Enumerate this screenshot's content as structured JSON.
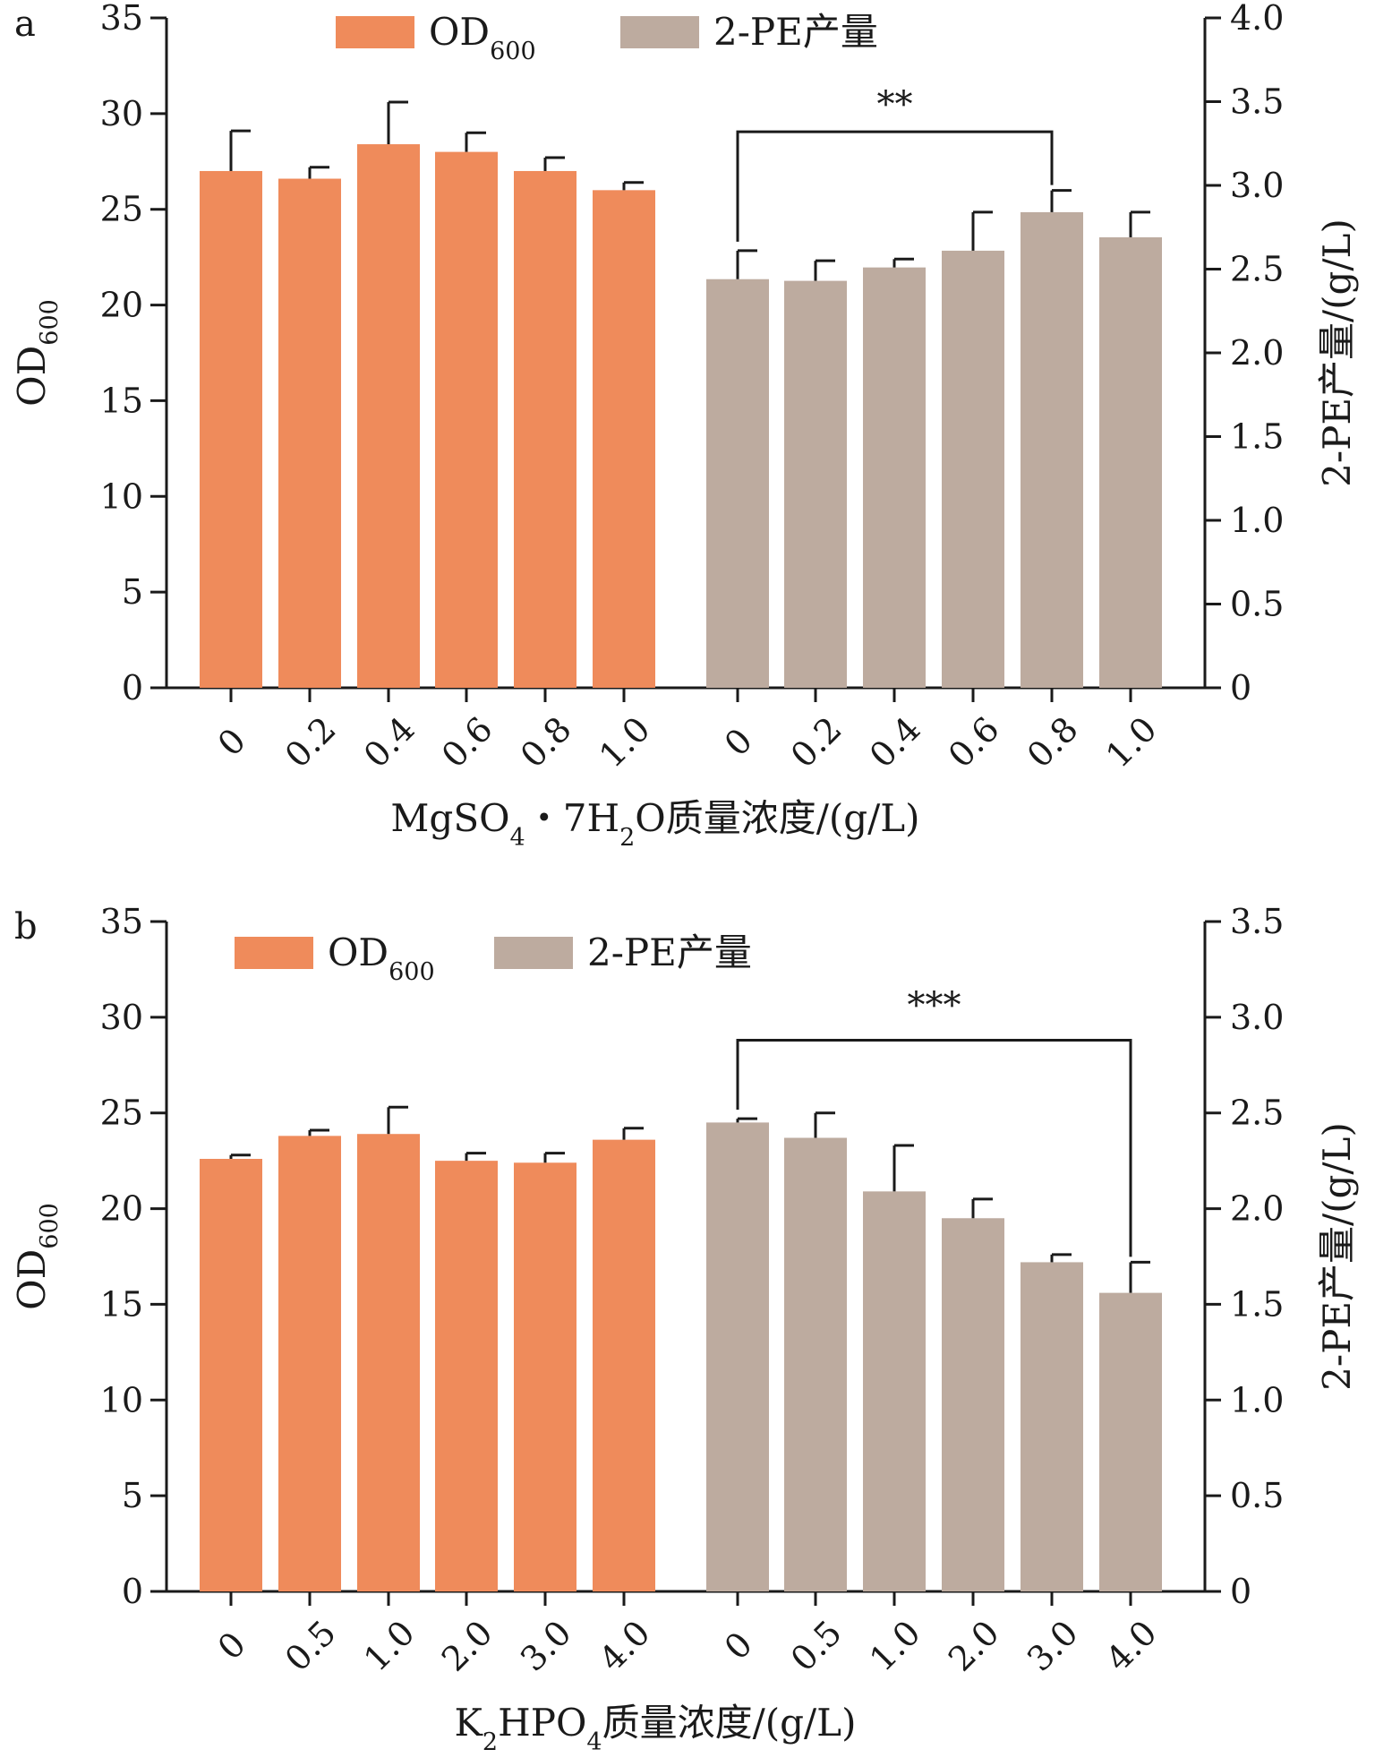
{
  "colors": {
    "od600": "#ef8b5b",
    "pe": "#bdab9f",
    "axis": "#1a1a1a"
  },
  "chart_data": [
    {
      "panel": "a",
      "type": "bar",
      "legend": [
        {
          "key": "od600",
          "label_main": "OD",
          "label_sub": "600"
        },
        {
          "key": "pe",
          "label_main": "2-PE产量",
          "label_sub": ""
        }
      ],
      "left_axis": {
        "label_main": "OD",
        "label_sub": "600",
        "ylim": [
          0,
          35
        ],
        "ticks": [
          "0",
          "5",
          "10",
          "15",
          "20",
          "25",
          "30",
          "35"
        ]
      },
      "right_axis": {
        "label": "2-PE产量/(g/L)",
        "ylim": [
          0,
          4.0
        ],
        "ticks": [
          "0",
          "0.5",
          "1.0",
          "1.5",
          "2.0",
          "2.5",
          "3.0",
          "3.5",
          "4.0"
        ]
      },
      "xlabel": {
        "parts": [
          [
            "MgSO",
            ""
          ],
          [
            "4",
            "sub"
          ],
          [
            "・7H",
            ""
          ],
          [
            "2",
            "sub"
          ],
          [
            "O质量浓度/(g/L)",
            ""
          ]
        ]
      },
      "series": [
        {
          "key": "od600",
          "name": "OD600",
          "axis": "left",
          "categories": [
            "0",
            "0.2",
            "0.4",
            "0.6",
            "0.8",
            "1.0"
          ],
          "values": [
            27.0,
            26.6,
            28.4,
            28.0,
            27.0,
            26.0
          ],
          "errors": [
            2.1,
            0.6,
            2.2,
            1.0,
            0.7,
            0.4
          ]
        },
        {
          "key": "pe",
          "name": "2-PE产量",
          "axis": "right",
          "categories": [
            "0",
            "0.2",
            "0.4",
            "0.6",
            "0.8",
            "1.0"
          ],
          "values": [
            2.44,
            2.43,
            2.51,
            2.61,
            2.84,
            2.69
          ],
          "errors": [
            0.17,
            0.12,
            0.05,
            0.23,
            0.13,
            0.15
          ]
        }
      ],
      "significance": {
        "label": "**",
        "from": [
          "pe",
          0
        ],
        "to": [
          "pe",
          4
        ],
        "level": 3.32
      }
    },
    {
      "panel": "b",
      "type": "bar",
      "legend": [
        {
          "key": "od600",
          "label_main": "OD",
          "label_sub": "600"
        },
        {
          "key": "pe",
          "label_main": "2-PE产量",
          "label_sub": ""
        }
      ],
      "left_axis": {
        "label_main": "OD",
        "label_sub": "600",
        "ylim": [
          0,
          35
        ],
        "ticks": [
          "0",
          "5",
          "10",
          "15",
          "20",
          "25",
          "30",
          "35"
        ]
      },
      "right_axis": {
        "label": "2-PE产量/(g/L)",
        "ylim": [
          0,
          3.5
        ],
        "ticks": [
          "0",
          "0.5",
          "1.0",
          "1.5",
          "2.0",
          "2.5",
          "3.0",
          "3.5"
        ]
      },
      "xlabel": {
        "parts": [
          [
            "K",
            ""
          ],
          [
            "2",
            "sub"
          ],
          [
            "HPO",
            ""
          ],
          [
            "4",
            "sub"
          ],
          [
            "质量浓度/(g/L)",
            ""
          ]
        ]
      },
      "series": [
        {
          "key": "od600",
          "name": "OD600",
          "axis": "left",
          "categories": [
            "0",
            "0.5",
            "1.0",
            "2.0",
            "3.0",
            "4.0"
          ],
          "values": [
            22.6,
            23.8,
            23.9,
            22.5,
            22.4,
            23.6
          ],
          "errors": [
            0.2,
            0.3,
            1.4,
            0.4,
            0.5,
            0.6
          ]
        },
        {
          "key": "pe",
          "name": "2-PE产量",
          "axis": "right",
          "categories": [
            "0",
            "0.5",
            "1.0",
            "2.0",
            "3.0",
            "4.0"
          ],
          "values": [
            2.45,
            2.37,
            2.09,
            1.95,
            1.72,
            1.56
          ],
          "errors": [
            0.02,
            0.13,
            0.24,
            0.1,
            0.04,
            0.16
          ]
        }
      ],
      "significance": {
        "label": "***",
        "from": [
          "pe",
          0
        ],
        "to": [
          "pe",
          5
        ],
        "level": 2.88
      }
    }
  ]
}
